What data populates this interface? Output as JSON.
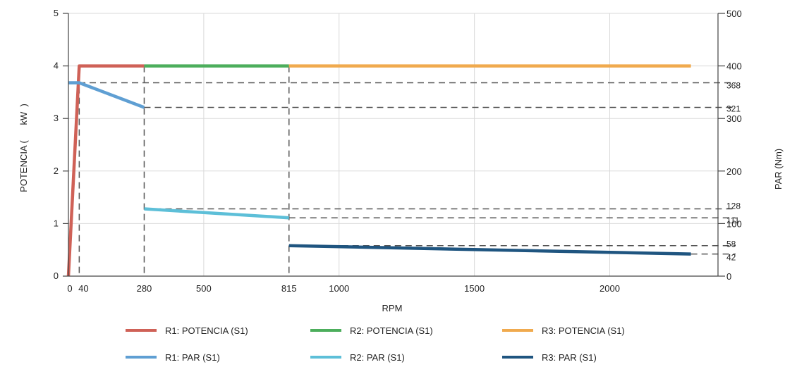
{
  "chart_data": {
    "type": "line",
    "xlabel": "RPM",
    "ylabel": "POTENCIA (      kW  )",
    "y2label": "PAR (Nm)",
    "x_ticks": [
      "0",
      "40",
      "280",
      "500",
      "815",
      "1000",
      "1500",
      "2000"
    ],
    "y_ticks": [
      "0",
      "1",
      "2",
      "3",
      "4",
      "5"
    ],
    "y2_ticks": [
      "0",
      "100",
      "200",
      "300",
      "400",
      "500"
    ],
    "y2_ref_labels": [
      "368",
      "321",
      "128",
      "111",
      "58",
      "42"
    ],
    "xlim": [
      0,
      2400
    ],
    "ylim": [
      0,
      5
    ],
    "y2lim": [
      0,
      500
    ],
    "grid": true,
    "legend_position": "bottom",
    "series": [
      {
        "name": "R1: POTENCIA (S1)",
        "color": "#cf6157",
        "axis": "left",
        "points": [
          [
            0,
            0
          ],
          [
            40,
            4
          ],
          [
            280,
            4
          ]
        ]
      },
      {
        "name": "R2: POTENCIA (S1)",
        "color": "#4cae5c",
        "axis": "left",
        "points": [
          [
            280,
            4
          ],
          [
            815,
            4
          ]
        ]
      },
      {
        "name": "R3: POTENCIA (S1)",
        "color": "#f0aa4e",
        "axis": "left",
        "points": [
          [
            815,
            4
          ],
          [
            2300,
            4
          ]
        ]
      },
      {
        "name": "R1: PAR (S1)",
        "color": "#5f9fd3",
        "axis": "right",
        "points": [
          [
            0,
            368
          ],
          [
            40,
            368
          ],
          [
            280,
            321
          ]
        ]
      },
      {
        "name": "R2: PAR (S1)",
        "color": "#5dbfd8",
        "axis": "right",
        "points": [
          [
            280,
            128
          ],
          [
            815,
            111
          ]
        ]
      },
      {
        "name": "R3: PAR (S1)",
        "color": "#1f5580",
        "axis": "right",
        "points": [
          [
            815,
            58
          ],
          [
            2300,
            42
          ]
        ]
      }
    ],
    "reference_lines": {
      "vertical_x": [
        40,
        280,
        815
      ],
      "horizontal_y2": [
        368,
        321,
        128,
        111,
        58,
        42
      ]
    }
  }
}
